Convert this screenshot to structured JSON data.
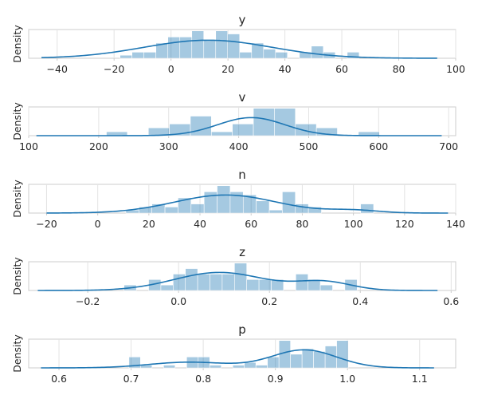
{
  "chart_data": [
    {
      "type": "histogram",
      "title": "y",
      "ylabel": "Density",
      "xlim": [
        -50,
        100
      ],
      "xticks": [
        -40,
        -20,
        0,
        20,
        40,
        60,
        80,
        100
      ],
      "tick_labels": [
        "−40",
        "−20",
        "0",
        "20",
        "40",
        "60",
        "80",
        "100"
      ],
      "bins": [
        -17.9,
        -13.7,
        -9.5,
        -5.3,
        -1.1,
        3.1,
        7.3,
        11.5,
        15.7,
        19.9,
        24.1,
        28.3,
        32.5,
        36.7,
        40.9,
        45.1,
        49.3,
        53.5,
        57.7,
        61.9,
        66.1
      ],
      "counts": [
        1,
        2,
        2,
        5,
        7,
        7,
        9,
        6,
        9,
        8,
        2,
        5,
        3,
        2,
        0,
        2,
        4,
        2,
        0,
        2
      ],
      "kde": {
        "xmin": -45.5,
        "xmax": 93.5,
        "mu": 13,
        "sigma": 22.5,
        "mu2": 0,
        "sigma2": 1,
        "w2": 0
      },
      "color": "#1f77b4",
      "grid": true
    },
    {
      "type": "histogram",
      "title": "v",
      "ylabel": "Density",
      "xlim": [
        100,
        710
      ],
      "xticks": [
        100,
        200,
        300,
        400,
        500,
        600,
        700
      ],
      "tick_labels": [
        "100",
        "200",
        "300",
        "400",
        "500",
        "600",
        "700"
      ],
      "bins": [
        211,
        241,
        271,
        301,
        331,
        361,
        391,
        421,
        451,
        481,
        511,
        541,
        571,
        601
      ],
      "counts": [
        1,
        0,
        2,
        3,
        5,
        1,
        3,
        7,
        7,
        3,
        2,
        0,
        1
      ],
      "bins_note": "",
      "kde": {
        "xmin": 111,
        "xmax": 690,
        "mu": 418,
        "sigma": 48,
        "mu2": 0,
        "sigma2": 1,
        "w2": 0
      },
      "color": "#1f77b4",
      "grid": true
    },
    {
      "type": "histogram",
      "title": "n",
      "ylabel": "Density",
      "xlim": [
        -27,
        140
      ],
      "xticks": [
        -20,
        0,
        20,
        40,
        60,
        80,
        100,
        120,
        140
      ],
      "tick_labels": [
        "−20",
        "0",
        "20",
        "40",
        "60",
        "80",
        "100",
        "120",
        "140"
      ],
      "bins": [
        11,
        16.1,
        21.2,
        26.3,
        31.4,
        36.5,
        41.6,
        46.7,
        51.8,
        56.9,
        62.0,
        67.1,
        72.2,
        77.3,
        82.4,
        87.5,
        92.6,
        97.7,
        102.8,
        107.9
      ],
      "counts": [
        1,
        2,
        3,
        2,
        5,
        3,
        7,
        9,
        7,
        6,
        4,
        1,
        7,
        3,
        2,
        0,
        0,
        0,
        3
      ],
      "kde": {
        "xmin": -20,
        "xmax": 137,
        "mu": 50,
        "sigma": 20,
        "mu2": 100,
        "sigma2": 10,
        "w2": 0.07
      },
      "color": "#1f77b4",
      "grid": true
    },
    {
      "type": "histogram",
      "title": "z",
      "ylabel": "Density",
      "xlim": [
        -0.33,
        0.61
      ],
      "xticks": [
        -0.2,
        0.0,
        0.2,
        0.4,
        0.6
      ],
      "tick_labels": [
        "−0.2",
        "0.0",
        "0.2",
        "0.4",
        "0.6"
      ],
      "bins": [
        -0.12,
        -0.093,
        -0.066,
        -0.039,
        -0.012,
        0.015,
        0.042,
        0.069,
        0.096,
        0.123,
        0.15,
        0.177,
        0.204,
        0.231,
        0.258,
        0.285,
        0.312,
        0.339,
        0.366,
        0.393
      ],
      "counts": [
        1,
        0,
        2,
        1,
        3,
        4,
        3,
        3,
        3,
        5,
        2,
        2,
        2,
        0,
        3,
        2,
        1,
        0,
        2
      ],
      "kde": {
        "xmin": -0.31,
        "xmax": 0.57,
        "mu": 0.09,
        "sigma": 0.1,
        "mu2": 0.32,
        "sigma2": 0.06,
        "w2": 0.22
      },
      "color": "#1f77b4",
      "grid": true
    },
    {
      "type": "histogram",
      "title": "p",
      "ylabel": "Density",
      "xlim": [
        0.558,
        1.15
      ],
      "xticks": [
        0.6,
        0.7,
        0.8,
        0.9,
        1.0,
        1.1
      ],
      "tick_labels": [
        "0.6",
        "0.7",
        "0.8",
        "0.9",
        "1.0",
        "1.1"
      ],
      "bins": [
        0.697,
        0.713,
        0.729,
        0.745,
        0.761,
        0.777,
        0.793,
        0.809,
        0.825,
        0.841,
        0.857,
        0.873,
        0.889,
        0.905,
        0.921,
        0.937,
        0.953,
        0.969,
        0.985,
        1.001
      ],
      "counts": [
        4,
        1,
        0,
        1,
        0,
        4,
        4,
        1,
        0,
        1,
        2,
        1,
        4,
        10,
        5,
        7,
        6,
        8,
        10
      ],
      "kde": {
        "xmin": 0.575,
        "xmax": 1.12,
        "mu": 0.94,
        "sigma": 0.045,
        "mu2": 0.78,
        "sigma2": 0.055,
        "w2": 0.28
      },
      "color": "#1f77b4",
      "grid": true
    }
  ]
}
